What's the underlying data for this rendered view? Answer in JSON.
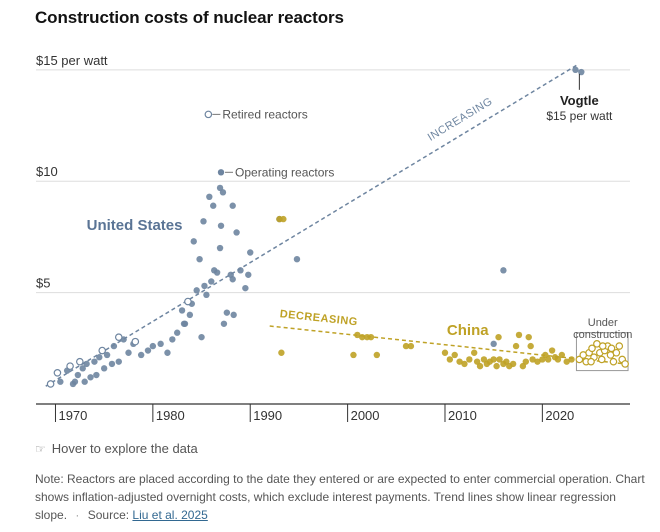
{
  "title": "Construction costs of nuclear reactors",
  "hover_hint": "Hover to explore the data",
  "note": {
    "text": "Note: Reactors are placed according to the date they entered or are expected to enter commercial operation. Chart shows inflation-adjusted overnight costs, which exclude interest payments. Trend lines show linear regression slope.",
    "source_prefix": "Source:",
    "source_link": "Liu et al. 2025"
  },
  "colors": {
    "us": "#6e85a0",
    "china": "#bfa226",
    "grid": "#dddddd",
    "text": "#333333",
    "us_label": "#5a7495",
    "china_label": "#bfa226"
  },
  "labels": {
    "united_states": "United States",
    "china": "China",
    "increasing": "INCREASING",
    "decreasing": "DECREASING",
    "retired": "Retired reactors",
    "operating": "Operating reactors",
    "vogtle_name": "Vogtle",
    "vogtle_value": "$15 per watt",
    "under_construction_line1": "Under",
    "under_construction_line2": "construction"
  },
  "chart_data": {
    "type": "scatter",
    "title": "Construction costs of nuclear reactors",
    "xlabel": "",
    "ylabel": "",
    "xlim": [
      1968,
      2029
    ],
    "ylim": [
      0,
      15.8
    ],
    "x_ticks": [
      1970,
      1980,
      1990,
      2000,
      2010,
      2020
    ],
    "y_ticks": [
      {
        "value": 5,
        "label": "$5"
      },
      {
        "value": 10,
        "label": "$10"
      },
      {
        "value": 15,
        "label": "$15 per watt"
      }
    ],
    "grid": true,
    "series": [
      {
        "name": "United States",
        "operating": [
          [
            1970.5,
            1.0
          ],
          [
            1971.2,
            1.5
          ],
          [
            1971.8,
            0.9
          ],
          [
            1972.3,
            1.3
          ],
          [
            1972.8,
            1.6
          ],
          [
            1973.2,
            1.8
          ],
          [
            1973.6,
            1.2
          ],
          [
            1974.0,
            1.9
          ],
          [
            1974.5,
            2.1
          ],
          [
            1975.0,
            1.6
          ],
          [
            1975.3,
            2.2
          ],
          [
            1976.0,
            2.6
          ],
          [
            1976.5,
            1.9
          ],
          [
            1977.0,
            2.9
          ],
          [
            1977.5,
            2.3
          ],
          [
            1978.0,
            2.7
          ],
          [
            1978.8,
            2.2
          ],
          [
            1979.5,
            2.4
          ],
          [
            1980.0,
            2.6
          ],
          [
            1980.8,
            2.7
          ],
          [
            1981.5,
            2.3
          ],
          [
            1982.0,
            2.9
          ],
          [
            1982.5,
            3.2
          ],
          [
            1983.0,
            4.2
          ],
          [
            1983.3,
            3.6
          ],
          [
            1983.8,
            4.0
          ],
          [
            1984.0,
            4.5
          ],
          [
            1984.5,
            5.1
          ],
          [
            1984.8,
            6.5
          ],
          [
            1985.0,
            3.0
          ],
          [
            1985.3,
            5.3
          ],
          [
            1985.5,
            4.9
          ],
          [
            1986.0,
            5.5
          ],
          [
            1986.3,
            6.0
          ],
          [
            1986.6,
            5.9
          ],
          [
            1986.9,
            7.0
          ],
          [
            1987.0,
            8.0
          ],
          [
            1987.3,
            3.6
          ],
          [
            1987.6,
            4.1
          ],
          [
            1988.0,
            5.8
          ],
          [
            1988.3,
            4.0
          ],
          [
            1988.6,
            7.7
          ],
          [
            1989.0,
            6.0
          ],
          [
            1989.5,
            5.2
          ],
          [
            1990.0,
            6.8
          ],
          [
            1993.0,
            8.3
          ],
          [
            1994.8,
            6.5
          ],
          [
            1984.2,
            7.3
          ],
          [
            1985.8,
            9.3
          ],
          [
            1986.9,
            9.7
          ],
          [
            1987.2,
            9.5
          ],
          [
            1986.2,
            8.9
          ],
          [
            1985.2,
            8.2
          ],
          [
            1988.2,
            8.9
          ],
          [
            1988.2,
            5.6
          ],
          [
            1983.2,
            3.6
          ],
          [
            1972.0,
            1.0
          ],
          [
            1973.0,
            1.0
          ],
          [
            1974.2,
            1.3
          ],
          [
            1975.8,
            1.8
          ],
          [
            2016.0,
            6.0
          ],
          [
            2023.4,
            15.0
          ],
          [
            2024.0,
            14.9
          ],
          [
            2015.0,
            2.7
          ],
          [
            1989.8,
            5.8
          ]
        ],
        "retired": [
          [
            1969.5,
            0.9
          ],
          [
            1970.2,
            1.4
          ],
          [
            1971.5,
            1.7
          ],
          [
            1972.5,
            1.9
          ],
          [
            1974.8,
            2.4
          ],
          [
            1976.5,
            3.0
          ],
          [
            1978.2,
            2.8
          ],
          [
            1983.6,
            4.6
          ],
          [
            1985.7,
            13.0
          ]
        ],
        "trend": {
          "from": [
            1969.0,
            0.8
          ],
          "to": [
            2023.5,
            15.2
          ],
          "label": "INCREASING"
        }
      },
      {
        "name": "China",
        "operating": [
          [
            1993.0,
            8.3
          ],
          [
            1993.4,
            8.3
          ],
          [
            1993.2,
            2.3
          ],
          [
            2000.6,
            2.2
          ],
          [
            2001.0,
            3.1
          ],
          [
            2001.5,
            3.0
          ],
          [
            2002.0,
            3.0
          ],
          [
            2002.4,
            3.0
          ],
          [
            2003.0,
            2.2
          ],
          [
            2006.0,
            2.6
          ],
          [
            2006.5,
            2.6
          ],
          [
            2010.0,
            2.3
          ],
          [
            2010.5,
            2.0
          ],
          [
            2011.0,
            2.2
          ],
          [
            2011.5,
            1.9
          ],
          [
            2012.0,
            1.8
          ],
          [
            2012.5,
            2.0
          ],
          [
            2013.0,
            2.3
          ],
          [
            2013.3,
            1.9
          ],
          [
            2013.6,
            1.7
          ],
          [
            2014.0,
            2.0
          ],
          [
            2014.3,
            1.8
          ],
          [
            2014.6,
            1.9
          ],
          [
            2015.0,
            2.0
          ],
          [
            2015.3,
            1.7
          ],
          [
            2015.6,
            2.0
          ],
          [
            2016.0,
            1.8
          ],
          [
            2016.3,
            1.9
          ],
          [
            2016.6,
            1.7
          ],
          [
            2017.0,
            1.8
          ],
          [
            2017.3,
            2.6
          ],
          [
            2017.6,
            3.1
          ],
          [
            2018.0,
            1.7
          ],
          [
            2018.3,
            1.9
          ],
          [
            2018.6,
            3.0
          ],
          [
            2019.0,
            2.0
          ],
          [
            2019.5,
            1.9
          ],
          [
            2020.0,
            2.0
          ],
          [
            2020.3,
            2.2
          ],
          [
            2020.6,
            2.0
          ],
          [
            2021.0,
            2.4
          ],
          [
            2021.3,
            2.1
          ],
          [
            2021.6,
            2.0
          ],
          [
            2022.0,
            2.2
          ],
          [
            2022.5,
            1.9
          ],
          [
            2023.0,
            2.0
          ],
          [
            2018.8,
            2.6
          ],
          [
            2015.5,
            3.0
          ]
        ],
        "under_construction": [
          [
            2023.8,
            2.0
          ],
          [
            2024.2,
            2.2
          ],
          [
            2024.5,
            1.9
          ],
          [
            2024.8,
            2.3
          ],
          [
            2025.1,
            2.5
          ],
          [
            2025.3,
            2.1
          ],
          [
            2025.6,
            2.7
          ],
          [
            2025.9,
            2.3
          ],
          [
            2026.1,
            2.0
          ],
          [
            2026.4,
            2.4
          ],
          [
            2026.7,
            2.6
          ],
          [
            2027.0,
            2.2
          ],
          [
            2027.3,
            1.9
          ],
          [
            2027.6,
            2.3
          ],
          [
            2027.9,
            2.6
          ],
          [
            2028.2,
            2.0
          ],
          [
            2028.5,
            1.8
          ],
          [
            2025.0,
            1.9
          ],
          [
            2026.2,
            2.6
          ],
          [
            2027.1,
            2.5
          ]
        ],
        "trend": {
          "from": [
            1992.0,
            3.5
          ],
          "to": [
            2028.5,
            1.8
          ],
          "label": "DECREASING"
        }
      }
    ],
    "annotations": [
      {
        "text": "Vogtle",
        "x": 2023.8,
        "y": 15.0
      },
      {
        "text": "$15 per watt",
        "x": 2023.8,
        "y": 15.0
      },
      {
        "text": "Retired reactors",
        "x": 1985.7,
        "y": 13.0
      },
      {
        "text": "Operating reactors",
        "x": 1987.0,
        "y": 10.4
      },
      {
        "text": "Under construction",
        "x": 2026.2,
        "y": 2.6
      }
    ]
  }
}
